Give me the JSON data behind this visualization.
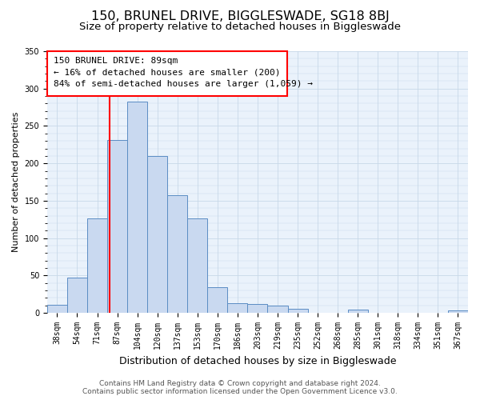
{
  "title": "150, BRUNEL DRIVE, BIGGLESWADE, SG18 8BJ",
  "subtitle": "Size of property relative to detached houses in Biggleswade",
  "xlabel": "Distribution of detached houses by size in Biggleswade",
  "ylabel": "Number of detached properties",
  "bar_labels": [
    "38sqm",
    "54sqm",
    "71sqm",
    "87sqm",
    "104sqm",
    "120sqm",
    "137sqm",
    "153sqm",
    "170sqm",
    "186sqm",
    "203sqm",
    "219sqm",
    "235sqm",
    "252sqm",
    "268sqm",
    "285sqm",
    "301sqm",
    "318sqm",
    "334sqm",
    "351sqm",
    "367sqm"
  ],
  "bar_values": [
    11,
    47,
    126,
    231,
    283,
    210,
    157,
    126,
    34,
    13,
    12,
    10,
    6,
    0,
    0,
    4,
    0,
    0,
    0,
    0,
    3
  ],
  "bar_color": "#c9d9f0",
  "bar_edge_color": "#5b8dc4",
  "grid_color": "#c8d8e8",
  "background_color": "#eaf2fb",
  "fig_background": "#ffffff",
  "annotation_line1": "150 BRUNEL DRIVE: 89sqm",
  "annotation_line2": "← 16% of detached houses are smaller (200)",
  "annotation_line3": "84% of semi-detached houses are larger (1,059) →",
  "ylim": [
    0,
    350
  ],
  "yticks": [
    0,
    50,
    100,
    150,
    200,
    250,
    300,
    350
  ],
  "footer_line1": "Contains HM Land Registry data © Crown copyright and database right 2024.",
  "footer_line2": "Contains public sector information licensed under the Open Government Licence v3.0.",
  "title_fontsize": 11.5,
  "subtitle_fontsize": 9.5,
  "xlabel_fontsize": 9,
  "ylabel_fontsize": 8,
  "tick_fontsize": 7,
  "annot_fontsize": 8,
  "footer_fontsize": 6.5
}
